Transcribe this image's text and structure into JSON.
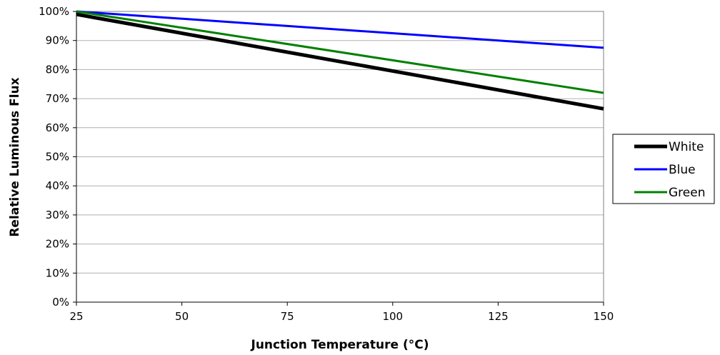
{
  "chart_data": {
    "type": "line",
    "xlabel": "Junction Temperature (°C)",
    "ylabel": "Relative Luminous Flux",
    "x_ticks": [
      "25",
      "50",
      "75",
      "100",
      "125",
      "150"
    ],
    "y_ticks": [
      "0%",
      "10%",
      "20%",
      "30%",
      "40%",
      "50%",
      "60%",
      "70%",
      "80%",
      "90%",
      "100%"
    ],
    "xlim": [
      25,
      150
    ],
    "ylim": [
      0,
      100
    ],
    "y_unit": "percent",
    "grid": "horizontal",
    "legend": "right",
    "series": [
      {
        "name": "White",
        "color": "#000000",
        "width": "thick",
        "x": [
          25,
          150
        ],
        "y": [
          99,
          66.5
        ]
      },
      {
        "name": "Blue",
        "color": "#0000ff",
        "width": "normal",
        "x": [
          25,
          150
        ],
        "y": [
          100,
          87.5
        ]
      },
      {
        "name": "Green",
        "color": "#008000",
        "width": "normal",
        "x": [
          25,
          150
        ],
        "y": [
          100,
          72
        ]
      }
    ]
  }
}
